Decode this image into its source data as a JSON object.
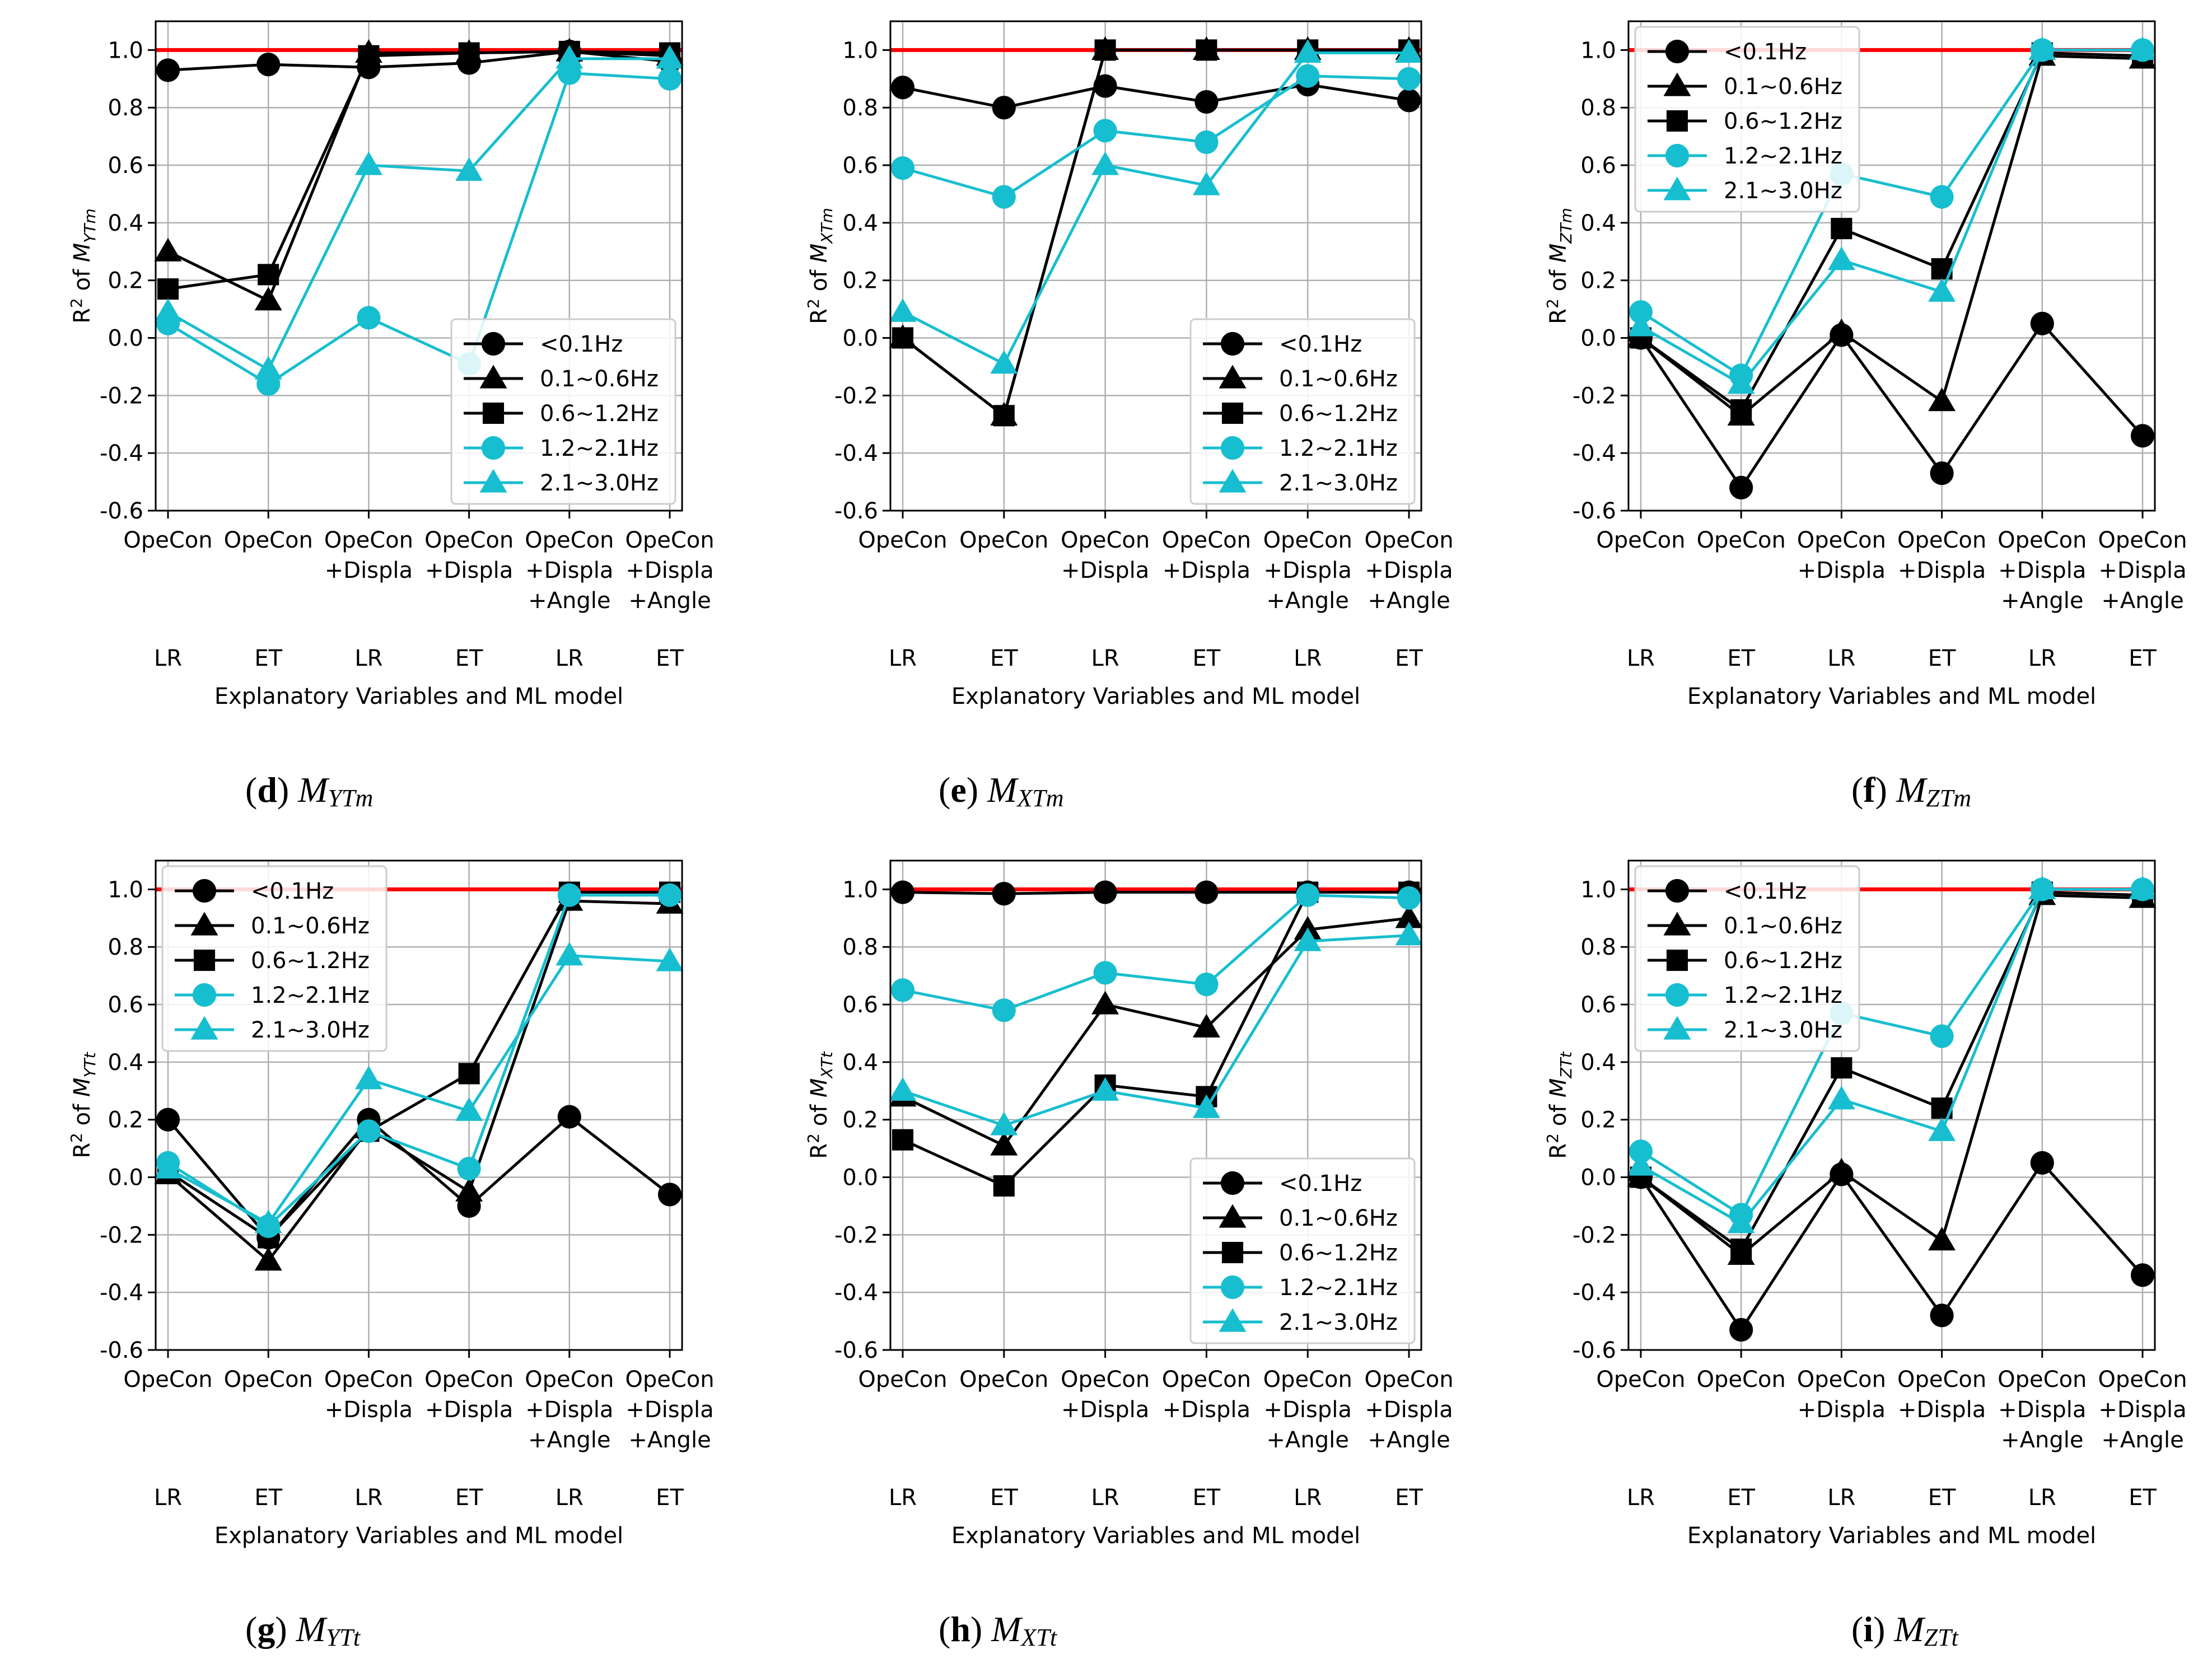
{
  "figure": {
    "colors": {
      "black_series": "#000000",
      "cyan_series": "#17BECF",
      "reference_line": "#FF0000",
      "grid": "#B0B0B0"
    }
  },
  "chart_data": [
    {
      "type": "line",
      "caption": {
        "letter": "d",
        "main": "M",
        "sub": "YTm"
      },
      "ylabel": {
        "prefix": "R",
        "sup": "2",
        "mid": " of ",
        "main": "M",
        "sub": "YTm"
      },
      "xlabel": "Explanatory Variables and ML model",
      "x_tick_lines": [
        [
          "OpeCon"
        ],
        [
          "OpeCon"
        ],
        [
          "OpeCon",
          "+Displa"
        ],
        [
          "OpeCon",
          "+Displa"
        ],
        [
          "OpeCon",
          "+Displa",
          "+Angle"
        ],
        [
          "OpeCon",
          "+Displa",
          "+Angle"
        ]
      ],
      "x_models": [
        "LR",
        "ET",
        "LR",
        "ET",
        "LR",
        "ET"
      ],
      "ylim": [
        -0.6,
        1.1
      ],
      "yticks": [
        "-0.6",
        "-0.4",
        "-0.2",
        "0.0",
        "0.2",
        "0.4",
        "0.6",
        "0.8",
        "1.0"
      ],
      "reference_line": 1.0,
      "legend_position": "lower-right",
      "series": [
        {
          "name": "<0.1Hz",
          "color": "#000000",
          "marker": "circle",
          "values": [
            0.93,
            0.95,
            0.94,
            0.955,
            0.995,
            0.96
          ]
        },
        {
          "name": "0.1~0.6Hz",
          "color": "#000000",
          "marker": "triangle",
          "values": [
            0.3,
            0.13,
            0.99,
            0.99,
            0.995,
            0.98
          ]
        },
        {
          "name": "0.6~1.2Hz",
          "color": "#000000",
          "marker": "square",
          "values": [
            0.17,
            0.22,
            0.98,
            0.99,
            0.995,
            0.99
          ]
        },
        {
          "name": "1.2~2.1Hz",
          "color": "#17BECF",
          "marker": "circle",
          "values": [
            0.05,
            -0.16,
            0.07,
            -0.09,
            0.92,
            0.9
          ]
        },
        {
          "name": "2.1~3.0Hz",
          "color": "#17BECF",
          "marker": "triangle",
          "values": [
            0.09,
            -0.11,
            0.6,
            0.58,
            0.97,
            0.97
          ]
        }
      ]
    },
    {
      "type": "line",
      "caption": {
        "letter": "e",
        "main": "M",
        "sub": "XTm"
      },
      "ylabel": {
        "prefix": "R",
        "sup": "2",
        "mid": " of ",
        "main": "M",
        "sub": "XTm"
      },
      "xlabel": "Explanatory Variables and ML model",
      "x_tick_lines": [
        [
          "OpeCon"
        ],
        [
          "OpeCon"
        ],
        [
          "OpeCon",
          "+Displa"
        ],
        [
          "OpeCon",
          "+Displa"
        ],
        [
          "OpeCon",
          "+Displa",
          "+Angle"
        ],
        [
          "OpeCon",
          "+Displa",
          "+Angle"
        ]
      ],
      "x_models": [
        "LR",
        "ET",
        "LR",
        "ET",
        "LR",
        "ET"
      ],
      "ylim": [
        -0.6,
        1.1
      ],
      "yticks": [
        "-0.6",
        "-0.4",
        "-0.2",
        "0.0",
        "0.2",
        "0.4",
        "0.6",
        "0.8",
        "1.0"
      ],
      "reference_line": 1.0,
      "legend_position": "lower-right",
      "series": [
        {
          "name": "<0.1Hz",
          "color": "#000000",
          "marker": "circle",
          "values": [
            0.87,
            0.8,
            0.875,
            0.82,
            0.88,
            0.825
          ]
        },
        {
          "name": "0.1~0.6Hz",
          "color": "#000000",
          "marker": "triangle",
          "values": [
            0.0,
            -0.27,
            1.0,
            1.0,
            1.0,
            1.0
          ]
        },
        {
          "name": "0.6~1.2Hz",
          "color": "#000000",
          "marker": "square",
          "values": [
            0.0,
            -0.27,
            1.0,
            1.0,
            1.0,
            1.0
          ]
        },
        {
          "name": "1.2~2.1Hz",
          "color": "#17BECF",
          "marker": "circle",
          "values": [
            0.59,
            0.49,
            0.72,
            0.68,
            0.91,
            0.9
          ]
        },
        {
          "name": "2.1~3.0Hz",
          "color": "#17BECF",
          "marker": "triangle",
          "values": [
            0.09,
            -0.09,
            0.6,
            0.53,
            0.99,
            0.99
          ]
        }
      ]
    },
    {
      "type": "line",
      "caption": {
        "letter": "f",
        "main": "M",
        "sub": "ZTm"
      },
      "ylabel": {
        "prefix": "R",
        "sup": "2",
        "mid": " of ",
        "main": "M",
        "sub": "ZTm"
      },
      "xlabel": "Explanatory Variables and ML model",
      "x_tick_lines": [
        [
          "OpeCon"
        ],
        [
          "OpeCon"
        ],
        [
          "OpeCon",
          "+Displa"
        ],
        [
          "OpeCon",
          "+Displa"
        ],
        [
          "OpeCon",
          "+Displa",
          "+Angle"
        ],
        [
          "OpeCon",
          "+Displa",
          "+Angle"
        ]
      ],
      "x_models": [
        "LR",
        "ET",
        "LR",
        "ET",
        "LR",
        "ET"
      ],
      "ylim": [
        -0.6,
        1.1
      ],
      "yticks": [
        "-0.6",
        "-0.4",
        "-0.2",
        "0.0",
        "0.2",
        "0.4",
        "0.6",
        "0.8",
        "1.0"
      ],
      "reference_line": 1.0,
      "legend_position": "upper-left",
      "series": [
        {
          "name": "<0.1Hz",
          "color": "#000000",
          "marker": "circle",
          "values": [
            0.0,
            -0.52,
            0.01,
            -0.47,
            0.05,
            -0.34
          ]
        },
        {
          "name": "0.1~0.6Hz",
          "color": "#000000",
          "marker": "triangle",
          "values": [
            0.0,
            -0.27,
            0.02,
            -0.22,
            0.98,
            0.97
          ]
        },
        {
          "name": "0.6~1.2Hz",
          "color": "#000000",
          "marker": "square",
          "values": [
            0.0,
            -0.25,
            0.38,
            0.24,
            0.99,
            0.98
          ]
        },
        {
          "name": "1.2~2.1Hz",
          "color": "#17BECF",
          "marker": "circle",
          "values": [
            0.09,
            -0.13,
            0.57,
            0.49,
            1.0,
            1.0
          ]
        },
        {
          "name": "2.1~3.0Hz",
          "color": "#17BECF",
          "marker": "triangle",
          "values": [
            0.04,
            -0.16,
            0.27,
            0.16,
            1.0,
            1.0
          ]
        }
      ]
    },
    {
      "type": "line",
      "caption": {
        "letter": "g",
        "main": "M",
        "sub": "YTt"
      },
      "ylabel": {
        "prefix": "R",
        "sup": "2",
        "mid": " of ",
        "main": "M",
        "sub": "YTt"
      },
      "xlabel": "Explanatory Variables and ML model",
      "x_tick_lines": [
        [
          "OpeCon"
        ],
        [
          "OpeCon"
        ],
        [
          "OpeCon",
          "+Displa"
        ],
        [
          "OpeCon",
          "+Displa"
        ],
        [
          "OpeCon",
          "+Displa",
          "+Angle"
        ],
        [
          "OpeCon",
          "+Displa",
          "+Angle"
        ]
      ],
      "x_models": [
        "LR",
        "ET",
        "LR",
        "ET",
        "LR",
        "ET"
      ],
      "ylim": [
        -0.6,
        1.1
      ],
      "yticks": [
        "-0.6",
        "-0.4",
        "-0.2",
        "0.0",
        "0.2",
        "0.4",
        "0.6",
        "0.8",
        "1.0"
      ],
      "reference_line": 1.0,
      "legend_position": "upper-left",
      "series": [
        {
          "name": "<0.1Hz",
          "color": "#000000",
          "marker": "circle",
          "values": [
            0.2,
            -0.21,
            0.2,
            -0.1,
            0.21,
            -0.06
          ]
        },
        {
          "name": "0.1~0.6Hz",
          "color": "#000000",
          "marker": "triangle",
          "values": [
            0.01,
            -0.29,
            0.17,
            -0.05,
            0.96,
            0.95
          ]
        },
        {
          "name": "0.6~1.2Hz",
          "color": "#000000",
          "marker": "square",
          "values": [
            0.02,
            -0.21,
            0.16,
            0.36,
            0.99,
            0.99
          ]
        },
        {
          "name": "1.2~2.1Hz",
          "color": "#17BECF",
          "marker": "circle",
          "values": [
            0.05,
            -0.17,
            0.16,
            0.03,
            0.98,
            0.98
          ]
        },
        {
          "name": "2.1~3.0Hz",
          "color": "#17BECF",
          "marker": "triangle",
          "values": [
            0.03,
            -0.16,
            0.34,
            0.23,
            0.77,
            0.75
          ]
        }
      ]
    },
    {
      "type": "line",
      "caption": {
        "letter": "h",
        "main": "M",
        "sub": "XTt"
      },
      "ylabel": {
        "prefix": "R",
        "sup": "2",
        "mid": " of ",
        "main": "M",
        "sub": "XTt"
      },
      "xlabel": "Explanatory Variables and ML model",
      "x_tick_lines": [
        [
          "OpeCon"
        ],
        [
          "OpeCon"
        ],
        [
          "OpeCon",
          "+Displa"
        ],
        [
          "OpeCon",
          "+Displa"
        ],
        [
          "OpeCon",
          "+Displa",
          "+Angle"
        ],
        [
          "OpeCon",
          "+Displa",
          "+Angle"
        ]
      ],
      "x_models": [
        "LR",
        "ET",
        "LR",
        "ET",
        "LR",
        "ET"
      ],
      "ylim": [
        -0.6,
        1.1
      ],
      "yticks": [
        "-0.6",
        "-0.4",
        "-0.2",
        "0.0",
        "0.2",
        "0.4",
        "0.6",
        "0.8",
        "1.0"
      ],
      "reference_line": 1.0,
      "legend_position": "lower-right",
      "series": [
        {
          "name": "<0.1Hz",
          "color": "#000000",
          "marker": "circle",
          "values": [
            0.99,
            0.985,
            0.99,
            0.99,
            0.99,
            0.99
          ]
        },
        {
          "name": "0.1~0.6Hz",
          "color": "#000000",
          "marker": "triangle",
          "values": [
            0.28,
            0.11,
            0.6,
            0.52,
            0.86,
            0.9
          ]
        },
        {
          "name": "0.6~1.2Hz",
          "color": "#000000",
          "marker": "square",
          "values": [
            0.13,
            -0.03,
            0.32,
            0.28,
            0.99,
            0.99
          ]
        },
        {
          "name": "1.2~2.1Hz",
          "color": "#17BECF",
          "marker": "circle",
          "values": [
            0.65,
            0.58,
            0.71,
            0.67,
            0.98,
            0.97
          ]
        },
        {
          "name": "2.1~3.0Hz",
          "color": "#17BECF",
          "marker": "triangle",
          "values": [
            0.3,
            0.18,
            0.3,
            0.24,
            0.82,
            0.84
          ]
        }
      ]
    },
    {
      "type": "line",
      "caption": {
        "letter": "i",
        "main": "M",
        "sub": "ZTt"
      },
      "ylabel": {
        "prefix": "R",
        "sup": "2",
        "mid": " of ",
        "main": "M",
        "sub": "ZTt"
      },
      "xlabel": "Explanatory Variables and ML model",
      "x_tick_lines": [
        [
          "OpeCon"
        ],
        [
          "OpeCon"
        ],
        [
          "OpeCon",
          "+Displa"
        ],
        [
          "OpeCon",
          "+Displa"
        ],
        [
          "OpeCon",
          "+Displa",
          "+Angle"
        ],
        [
          "OpeCon",
          "+Displa",
          "+Angle"
        ]
      ],
      "x_models": [
        "LR",
        "ET",
        "LR",
        "ET",
        "LR",
        "ET"
      ],
      "ylim": [
        -0.6,
        1.1
      ],
      "yticks": [
        "-0.6",
        "-0.4",
        "-0.2",
        "0.0",
        "0.2",
        "0.4",
        "0.6",
        "0.8",
        "1.0"
      ],
      "reference_line": 1.0,
      "legend_position": "upper-left",
      "series": [
        {
          "name": "<0.1Hz",
          "color": "#000000",
          "marker": "circle",
          "values": [
            0.0,
            -0.53,
            0.01,
            -0.48,
            0.05,
            -0.34
          ]
        },
        {
          "name": "0.1~0.6Hz",
          "color": "#000000",
          "marker": "triangle",
          "values": [
            0.0,
            -0.27,
            0.02,
            -0.22,
            0.98,
            0.97
          ]
        },
        {
          "name": "0.6~1.2Hz",
          "color": "#000000",
          "marker": "square",
          "values": [
            0.0,
            -0.25,
            0.38,
            0.24,
            0.99,
            0.98
          ]
        },
        {
          "name": "1.2~2.1Hz",
          "color": "#17BECF",
          "marker": "circle",
          "values": [
            0.09,
            -0.13,
            0.57,
            0.49,
            1.0,
            1.0
          ]
        },
        {
          "name": "2.1~3.0Hz",
          "color": "#17BECF",
          "marker": "triangle",
          "values": [
            0.04,
            -0.16,
            0.27,
            0.16,
            1.0,
            1.0
          ]
        }
      ]
    }
  ]
}
